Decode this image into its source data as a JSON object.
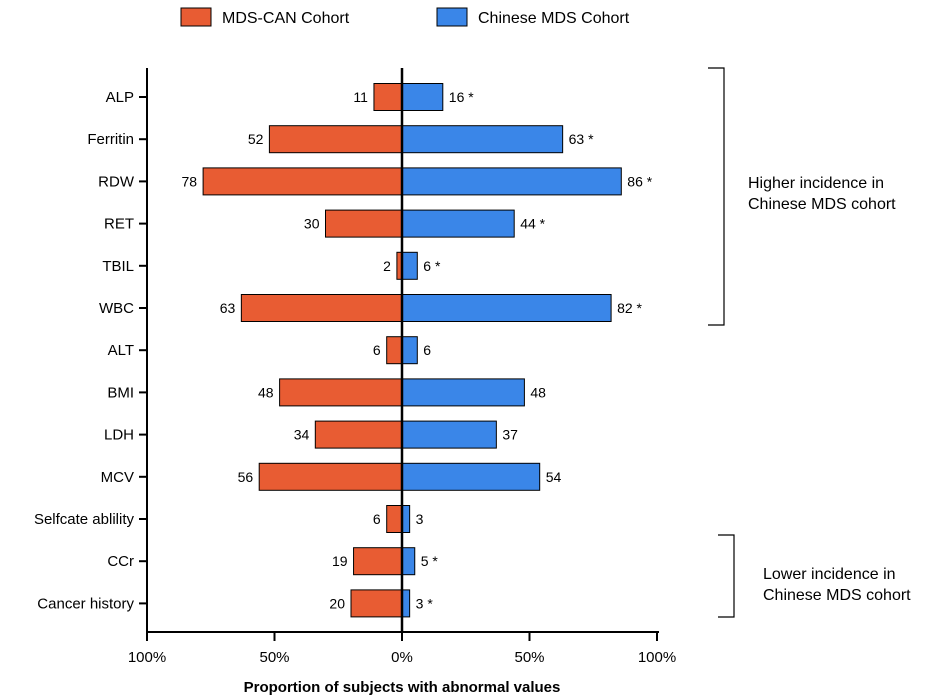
{
  "colors": {
    "left_series": "#e85c33",
    "right_series": "#3a86e8",
    "axis": "#000000"
  },
  "chart_data": {
    "type": "bar",
    "orientation": "horizontal-diverging",
    "title": "",
    "xlabel": "Proportion of subjects with abnormal  values",
    "ylabel": "",
    "xlim": [
      -100,
      100
    ],
    "x_ticks": [
      -100,
      -50,
      0,
      50,
      100
    ],
    "x_tick_labels": [
      "100%",
      "50%",
      "0%",
      "50%",
      "100%"
    ],
    "legend_position": "top",
    "categories": [
      "ALP",
      "Ferritin",
      "RDW",
      "RET",
      "TBIL",
      "WBC",
      "ALT",
      "BMI",
      "LDH",
      "MCV",
      "Selfcate ablility",
      "CCr",
      "Cancer history"
    ],
    "series": [
      {
        "name": "MDS-CAN Cohort",
        "side": "left",
        "color": "#e85c33",
        "values": [
          11,
          52,
          78,
          30,
          2,
          63,
          6,
          48,
          34,
          56,
          6,
          19,
          20
        ]
      },
      {
        "name": "Chinese MDS Cohort",
        "side": "right",
        "color": "#3a86e8",
        "values": [
          16,
          63,
          86,
          44,
          6,
          82,
          6,
          48,
          37,
          54,
          3,
          5,
          3
        ]
      }
    ],
    "significance_marks": [
      "*",
      "*",
      "*",
      "*",
      "*",
      "*",
      "",
      "",
      "",
      "",
      "",
      "*",
      "*"
    ],
    "groups": [
      {
        "label_lines": [
          "Higher incidence in",
          "Chinese MDS cohort"
        ],
        "from": "ALP",
        "to": "WBC"
      },
      {
        "label_lines": [
          "Lower incidence in",
          "Chinese MDS cohort"
        ],
        "from": "CCr",
        "to": "Cancer history"
      }
    ]
  }
}
